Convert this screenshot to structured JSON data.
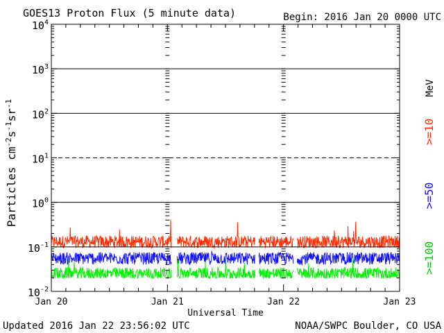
{
  "header": {
    "title": "GOES13 Proton Flux (5 minute data)",
    "begin": "Begin: 2016 Jan 20 0000 UTC"
  },
  "footer": {
    "updated": "Updated 2016 Jan 22 23:56:02 UTC",
    "source": "NOAA/SWPC Boulder, CO USA"
  },
  "chart_data": {
    "type": "line",
    "xlabel": "Universal Time",
    "ylabel_parts": [
      "Particles cm",
      "-2",
      "s",
      "-1",
      "sr",
      "-1"
    ],
    "y_scale": "log",
    "ylim": [
      0.01,
      10000
    ],
    "x_ticks": [
      "Jan 20",
      "Jan 21",
      "Jan 22",
      "Jan 23"
    ],
    "y_ticks": [
      {
        "base": "10",
        "exp": "4"
      },
      {
        "base": "10",
        "exp": "3"
      },
      {
        "base": "10",
        "exp": "2"
      },
      {
        "base": "10",
        "exp": "1"
      },
      {
        "base": "10",
        "exp": "0"
      },
      {
        "base": "10",
        "exp": "-1"
      },
      {
        "base": "10",
        "exp": "-2"
      }
    ],
    "reference_lines": [
      {
        "value": 1000,
        "style": "solid"
      },
      {
        "value": 100,
        "style": "solid"
      },
      {
        "value": 10,
        "style": "dashed"
      },
      {
        "value": 1,
        "style": "solid"
      },
      {
        "value": 0.1,
        "style": "solid"
      }
    ],
    "unit_label": "MeV",
    "series": [
      {
        "name": ">=10",
        "color": "#ff2a00",
        "typical": 0.13,
        "min": 0.085,
        "max": 0.42
      },
      {
        "name": ">=50",
        "color": "#1010ff",
        "typical": 0.055,
        "min": 0.035,
        "max": 0.13
      },
      {
        "name": ">=100",
        "color": "#00ee00",
        "typical": 0.025,
        "min": 0.02,
        "max": 0.06
      }
    ]
  }
}
